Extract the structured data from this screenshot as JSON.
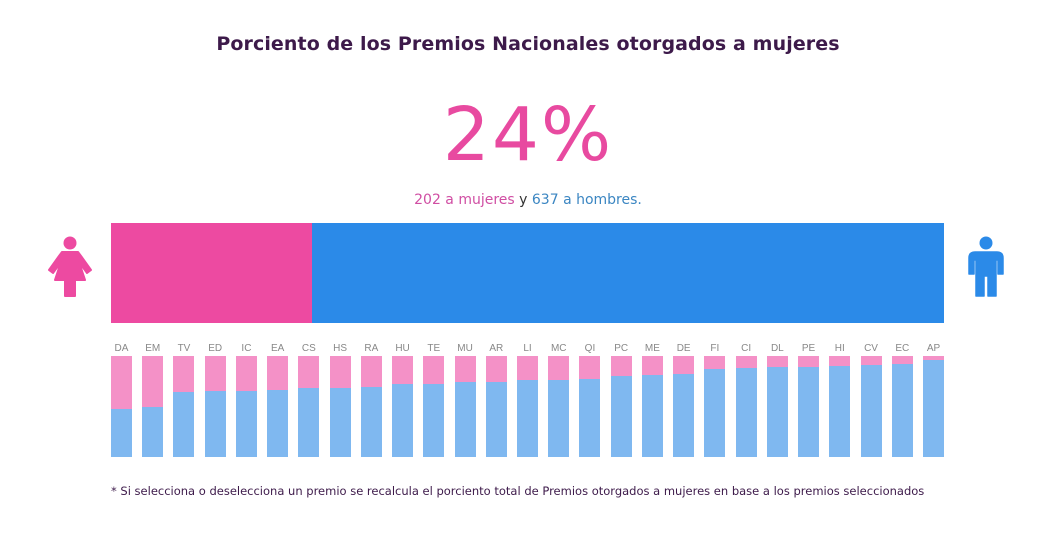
{
  "header": {
    "title": "Porciento de los Premios Nacionales otorgados a mujeres"
  },
  "summary": {
    "percent_label": "24%",
    "women_text": "202 a mujeres",
    "connector": " y ",
    "men_text": "637 a hombres."
  },
  "colors": {
    "women_main": "#ed4aa1",
    "men_main": "#2b8ae8",
    "women_light": "#f491c7",
    "men_light": "#7fb8f0",
    "title": "#3d1a4a"
  },
  "icons": {
    "women": "woman-icon",
    "men": "man-icon"
  },
  "footnote": "* Si selecciona o deselecciona un premio se recalcula el porciento total de Premios otorgados a mujeres en base a los premios seleccionados",
  "chart_data": [
    {
      "type": "bar",
      "title": "Porciento de los Premios Nacionales otorgados a mujeres",
      "orientation": "horizontal-stacked",
      "categories": [
        "Mujeres",
        "Hombres"
      ],
      "values": [
        202,
        637
      ],
      "percent_women": 24,
      "legend": "none"
    },
    {
      "type": "bar",
      "orientation": "vertical-stacked-100",
      "categories": [
        "DA",
        "EM",
        "TV",
        "ED",
        "IC",
        "EA",
        "CS",
        "HS",
        "RA",
        "HU",
        "TE",
        "MU",
        "AR",
        "LI",
        "MC",
        "QI",
        "PC",
        "ME",
        "DE",
        "FI",
        "CI",
        "DL",
        "PE",
        "HI",
        "CV",
        "EC",
        "AP"
      ],
      "series": [
        {
          "name": "Mujeres",
          "values": [
            0.52,
            0.5,
            0.36,
            0.35,
            0.35,
            0.34,
            0.32,
            0.32,
            0.31,
            0.28,
            0.28,
            0.26,
            0.26,
            0.24,
            0.24,
            0.23,
            0.2,
            0.19,
            0.18,
            0.13,
            0.12,
            0.11,
            0.11,
            0.1,
            0.09,
            0.08,
            0.04
          ]
        },
        {
          "name": "Hombres",
          "values": [
            0.48,
            0.5,
            0.64,
            0.65,
            0.65,
            0.66,
            0.68,
            0.68,
            0.69,
            0.72,
            0.72,
            0.74,
            0.74,
            0.76,
            0.76,
            0.77,
            0.8,
            0.81,
            0.82,
            0.87,
            0.88,
            0.89,
            0.89,
            0.9,
            0.91,
            0.92,
            0.96
          ]
        }
      ],
      "ylim": [
        0,
        1
      ],
      "grid": false,
      "legend": "none"
    }
  ]
}
